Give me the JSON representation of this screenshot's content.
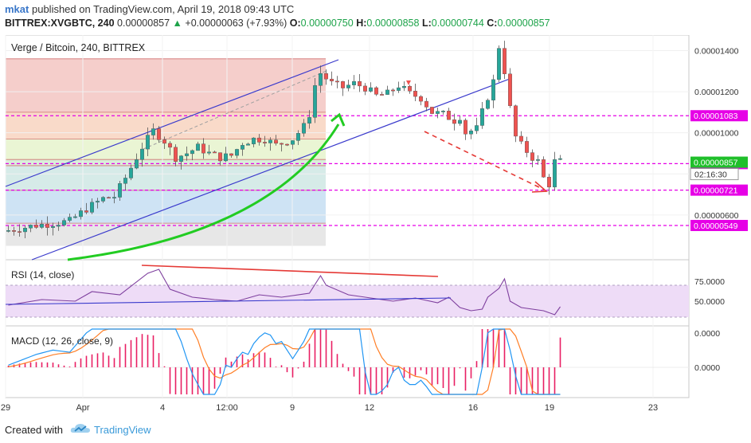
{
  "header": {
    "author": "mkat",
    "published_text": "published on TradingView.com, April 19, 2018 09:43 UTC",
    "symbol": "BITTREX:XVGBTC, 240",
    "last": "0.00000857",
    "change": "+0.00000063 (+7.93%)",
    "o_label": "O:",
    "o_value": "0.00000750",
    "h_label": "H:",
    "h_value": "0.00000858",
    "l_label": "L:",
    "l_value": "0.00000744",
    "c_label": "C:",
    "c_value": "0.00000857"
  },
  "footer": {
    "created_with": "Created with",
    "brand": "TradingView"
  },
  "colors": {
    "up": "#26a69a",
    "down": "#ef5350",
    "magenta": "#e600e6",
    "channel": "#3a3acc",
    "arrow_green": "#22cc22",
    "rsi": "#7e3f9e",
    "rsi_band": "#eedcf7",
    "macd": "#2196f3",
    "signal": "#ff7f27",
    "hist": "#e91e63"
  },
  "chart_data": [
    {
      "type": "candlestick",
      "title": "Verge / Bitcoin, 240, BITTREX",
      "x_ticks": [
        "29",
        "Apr",
        "4",
        "12:00",
        "9",
        "12",
        "16",
        "19",
        "23"
      ],
      "y_ticks": [
        "0.00000600",
        "0.00000800",
        "0.00001000",
        "0.00001200",
        "0.00001400"
      ],
      "ylim": [
        3.9e-06,
        1.46e-05
      ],
      "levels": [
        {
          "value": "0.00001083",
          "color": "#e600e6"
        },
        {
          "value": "0.00000850",
          "color": "#e600e6"
        },
        {
          "value": "0.00000721",
          "color": "#e600e6"
        },
        {
          "value": "0.00000549",
          "color": "#e600e6"
        }
      ],
      "current_price": "0.00000857",
      "countdown": "02:16:30",
      "close_path": [
        [
          0,
          5.2e-06
        ],
        [
          6,
          5.5e-06
        ],
        [
          12,
          5.7e-06
        ],
        [
          15,
          6.3e-06
        ],
        [
          18,
          6.8e-06
        ],
        [
          20,
          6.9e-06
        ],
        [
          22,
          7.8e-06
        ],
        [
          25,
          9.3e-06
        ],
        [
          27,
          1.01e-05
        ],
        [
          29,
          9.6e-06
        ],
        [
          31,
          8.8e-06
        ],
        [
          33,
          9e-06
        ],
        [
          35,
          9.3e-06
        ],
        [
          37,
          9e-06
        ],
        [
          39,
          8.8e-06
        ],
        [
          41,
          8.9e-06
        ],
        [
          43,
          9.5e-06
        ],
        [
          45,
          9.7e-06
        ],
        [
          47,
          9.7e-06
        ],
        [
          49,
          9.4e-06
        ],
        [
          52,
          9.7e-06
        ],
        [
          54,
          1.03e-05
        ],
        [
          55,
          1.09e-05
        ],
        [
          56,
          1.23e-05
        ],
        [
          57,
          1.29e-05
        ],
        [
          59,
          1.24e-05
        ],
        [
          61,
          1.22e-05
        ],
        [
          63,
          1.24e-05
        ],
        [
          65,
          1.22e-05
        ],
        [
          67,
          1.18e-05
        ],
        [
          69,
          1.19e-05
        ],
        [
          71,
          1.23e-05
        ],
        [
          73,
          1.19e-05
        ],
        [
          75,
          1.17e-05
        ],
        [
          77,
          1.1e-05
        ],
        [
          79,
          1.09e-05
        ],
        [
          81,
          1.06e-05
        ],
        [
          82,
          1.08e-05
        ],
        [
          83,
          1e-05
        ],
        [
          85,
          1.02e-05
        ],
        [
          86,
          1.1e-05
        ],
        [
          88,
          1.25e-05
        ],
        [
          89,
          1.42e-05
        ],
        [
          90,
          1.3e-05
        ],
        [
          91,
          1.12e-05
        ],
        [
          92,
          9.8e-06
        ],
        [
          93,
          9.4e-06
        ],
        [
          94,
          9.1e-06
        ],
        [
          95,
          8.8e-06
        ],
        [
          96,
          8.6e-06
        ],
        [
          97,
          7.8e-06
        ],
        [
          98,
          7.5e-06
        ],
        [
          99,
          8.6e-06
        ]
      ],
      "series": [
        {
          "name": "RSI (14, close)",
          "ylim": [
            20,
            100
          ],
          "y_ticks": [
            "50.0000",
            "75.0000"
          ],
          "values_path": [
            [
              0,
              45
            ],
            [
              6,
              52
            ],
            [
              12,
              50
            ],
            [
              15,
              62
            ],
            [
              20,
              58
            ],
            [
              25,
              85
            ],
            [
              27,
              90
            ],
            [
              29,
              65
            ],
            [
              33,
              55
            ],
            [
              37,
              52
            ],
            [
              41,
              50
            ],
            [
              45,
              58
            ],
            [
              49,
              55
            ],
            [
              54,
              60
            ],
            [
              56,
              82
            ],
            [
              57,
              70
            ],
            [
              61,
              58
            ],
            [
              65,
              54
            ],
            [
              69,
              50
            ],
            [
              73,
              54
            ],
            [
              77,
              48
            ],
            [
              79,
              55
            ],
            [
              81,
              42
            ],
            [
              83,
              38
            ],
            [
              85,
              40
            ],
            [
              86,
              55
            ],
            [
              88,
              66
            ],
            [
              89,
              78
            ],
            [
              90,
              50
            ],
            [
              92,
              42
            ],
            [
              94,
              40
            ],
            [
              96,
              38
            ],
            [
              98,
              33
            ],
            [
              99,
              43
            ]
          ]
        },
        {
          "name": "MACD (12, 26, close, 9)",
          "y_ticks": [
            "0.0000"
          ]
        }
      ],
      "annotations": [
        {
          "type": "channel",
          "color": "#3a3acc"
        },
        {
          "type": "fib_zones"
        },
        {
          "type": "green_curve_arrow"
        },
        {
          "type": "red_dashed_arrow"
        },
        {
          "type": "rsi_divergence_line"
        }
      ]
    }
  ]
}
